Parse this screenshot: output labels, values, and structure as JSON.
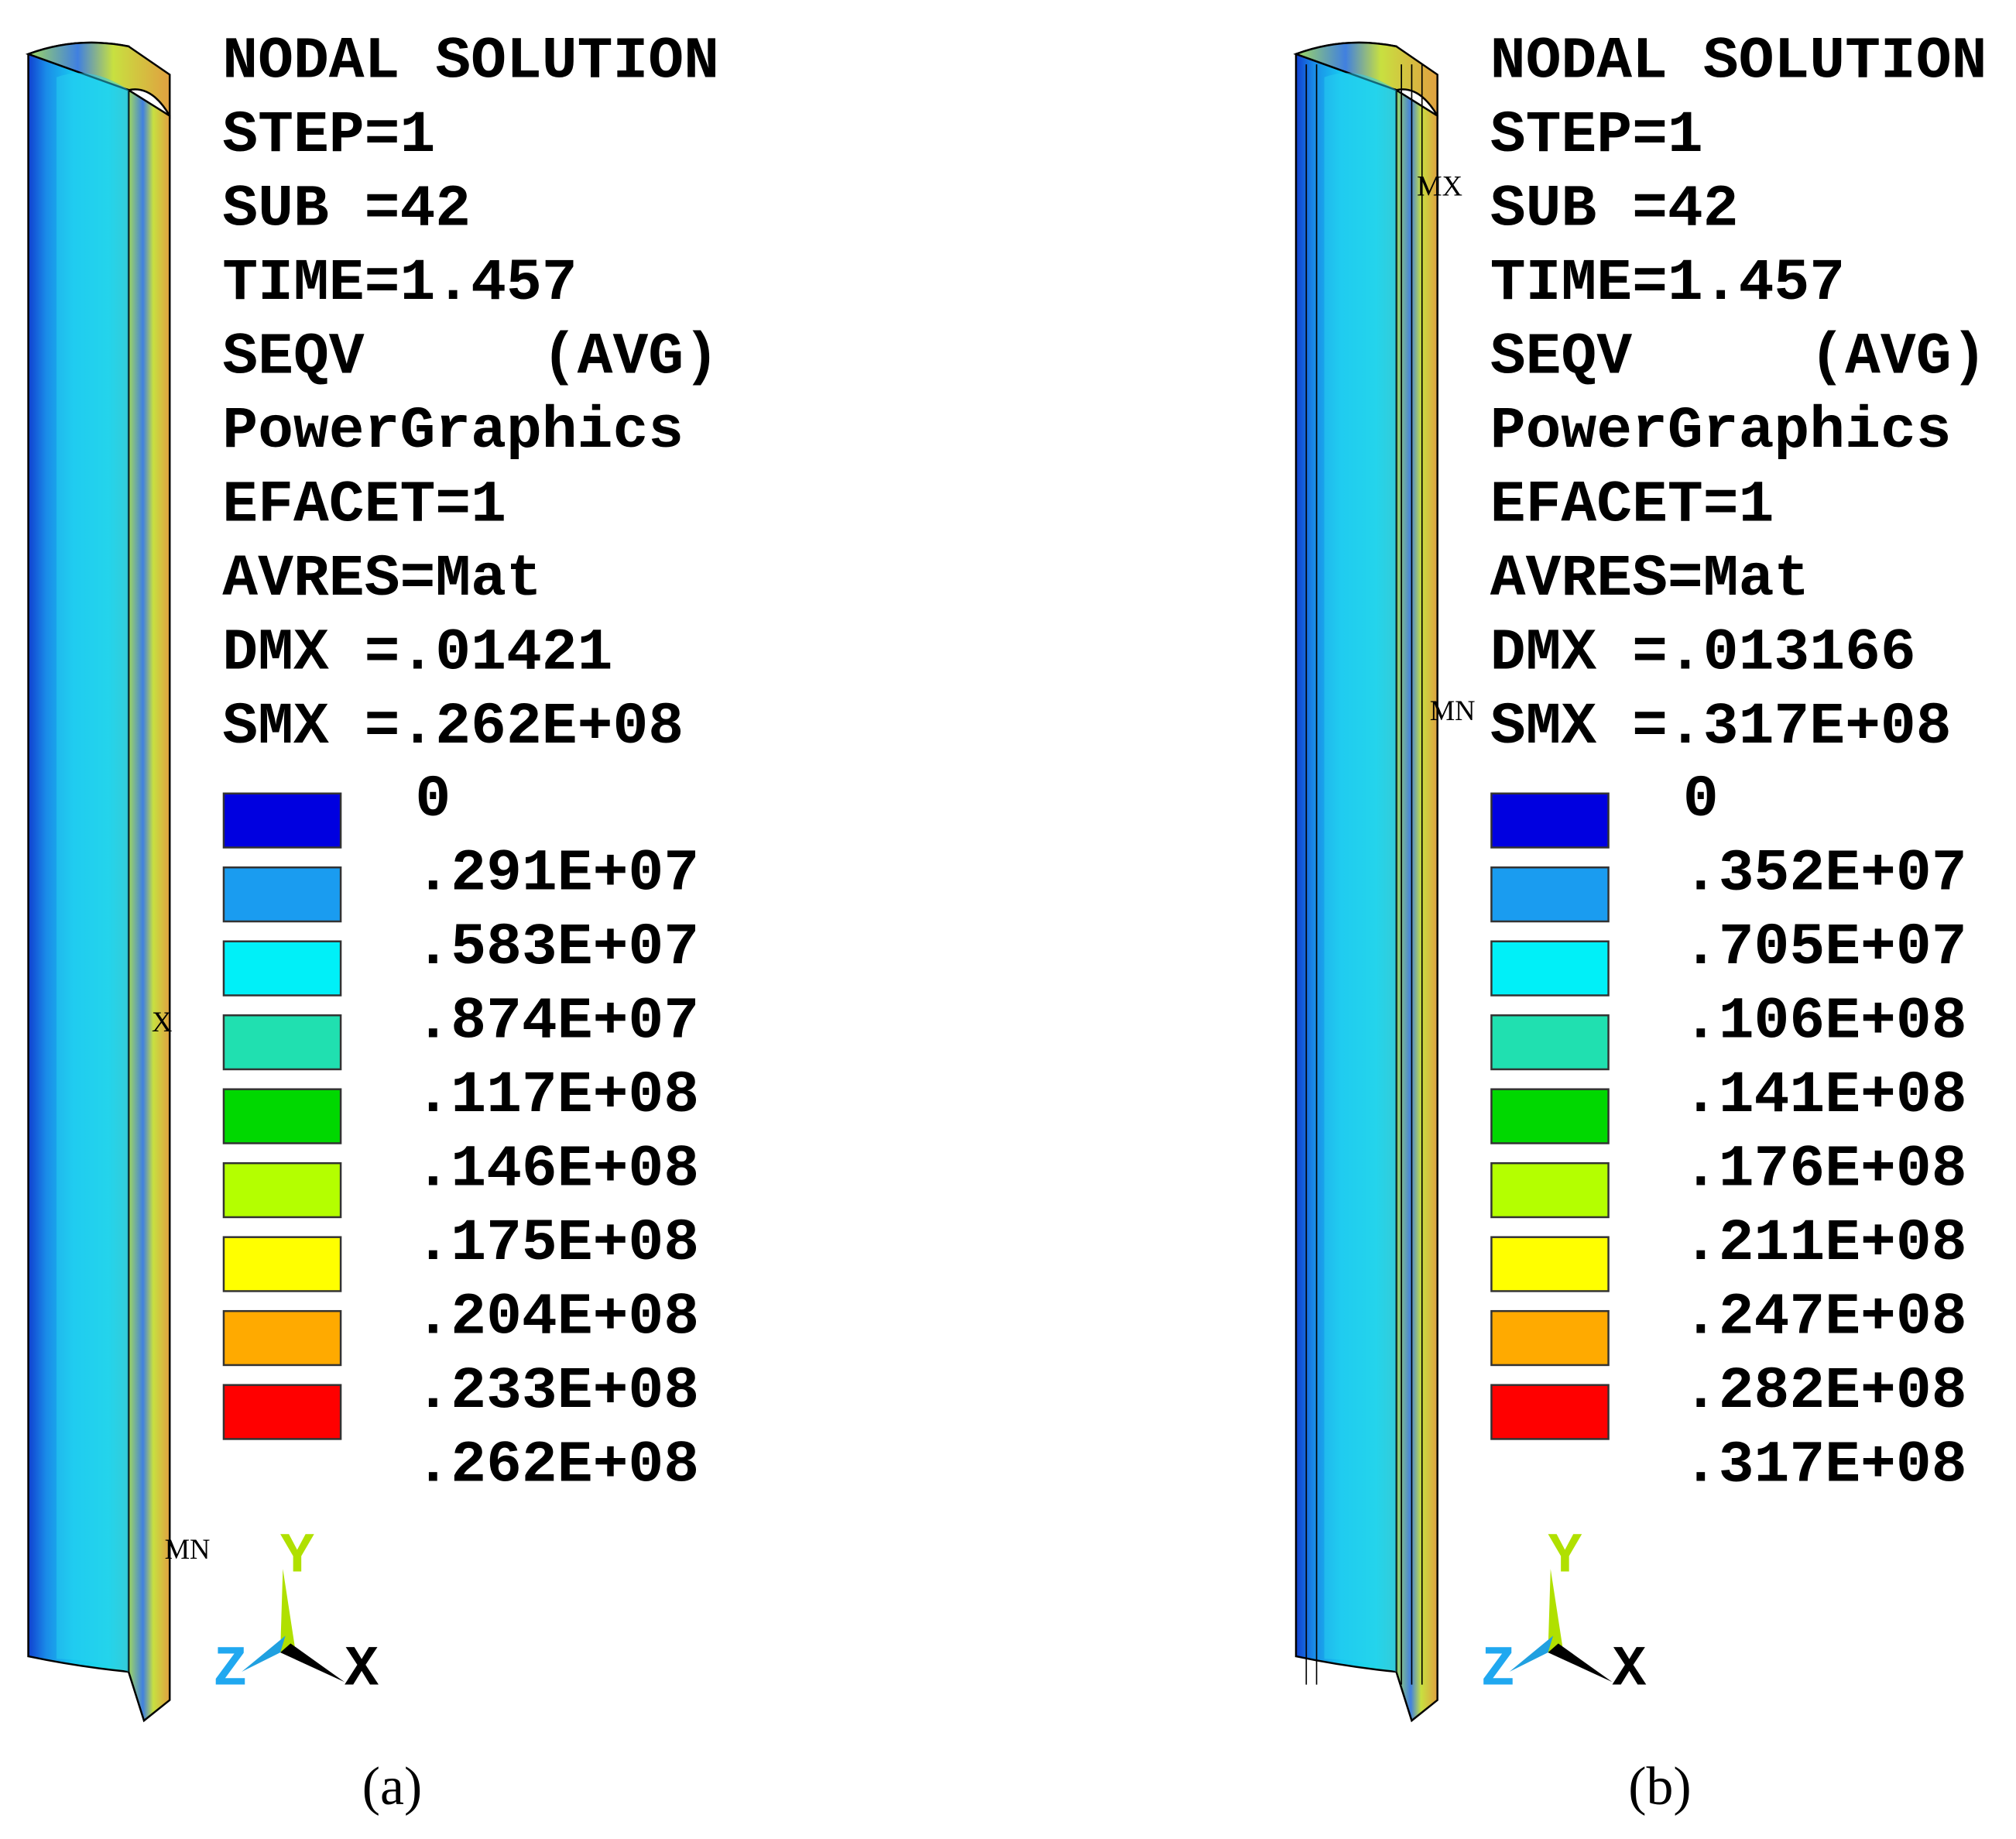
{
  "panels": [
    {
      "header": [
        "NODAL SOLUTION",
        "STEP=1",
        "SUB =42",
        "TIME=1.457",
        "SEQV     (AVG)",
        "PowerGraphics",
        "EFACET=1",
        "AVRES=Mat",
        "DMX =.01421",
        "SMX =.262E+08"
      ],
      "legend": {
        "labels": [
          "0",
          ".291E+07",
          ".583E+07",
          ".874E+07",
          ".117E+08",
          ".146E+08",
          ".175E+08",
          ".204E+08",
          ".233E+08",
          ".262E+08"
        ],
        "colors": [
          "#0000e0",
          "#1a9cf0",
          "#00f0f8",
          "#20e0b0",
          "#00d800",
          "#b4ff00",
          "#ffff00",
          "#ffaa00",
          "#ff0000"
        ]
      },
      "markers": [
        "X",
        "MN"
      ],
      "triad": [
        "Y",
        "Z",
        "X"
      ],
      "caption": "(a)"
    },
    {
      "header": [
        "NODAL SOLUTION",
        "STEP=1",
        "SUB =42",
        "TIME=1.457",
        "SEQV     (AVG)",
        "PowerGraphics",
        "EFACET=1",
        "AVRES=Mat",
        "DMX =.013166",
        "SMX =.317E+08"
      ],
      "legend": {
        "labels": [
          "0",
          ".352E+07",
          ".705E+07",
          ".106E+08",
          ".141E+08",
          ".176E+08",
          ".211E+08",
          ".247E+08",
          ".282E+08",
          ".317E+08"
        ],
        "colors": [
          "#0000e0",
          "#1a9cf0",
          "#00f0f8",
          "#20e0b0",
          "#00d800",
          "#b4ff00",
          "#ffff00",
          "#ffaa00",
          "#ff0000"
        ]
      },
      "markers": [
        "MX",
        "MN"
      ],
      "triad": [
        "Y",
        "Z",
        "X"
      ],
      "caption": "(b)"
    }
  ]
}
